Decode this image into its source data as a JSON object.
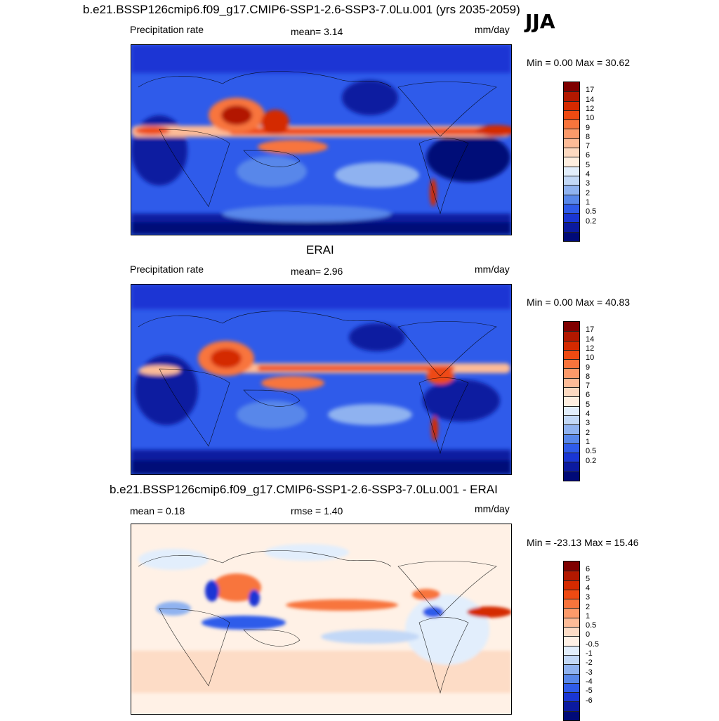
{
  "season": "JJA",
  "panels": [
    {
      "id": "model",
      "title": "b.e21.BSSP126cmip6.f09_g17.CMIP6-SSP1-2.6-SSP3-7.0Lu.001 (yrs 2035-2059)",
      "left_label": "Precipitation rate",
      "center_label": "mean=   3.14",
      "units": "mm/day",
      "minmax": "Min =   0.00 Max =  30.62",
      "stat": {
        "name": "mean",
        "value": 3.14
      },
      "min": 0.0,
      "max": 30.62
    },
    {
      "id": "obs",
      "title": "ERAI",
      "left_label": "Precipitation rate",
      "center_label": "mean=   2.96",
      "units": "mm/day",
      "minmax": "Min =   0.00 Max =  40.83",
      "stat": {
        "name": "mean",
        "value": 2.96
      },
      "min": 0.0,
      "max": 40.83
    },
    {
      "id": "diff",
      "title": "b.e21.BSSP126cmip6.f09_g17.CMIP6-SSP1-2.6-SSP3-7.0Lu.001 - ERAI",
      "left_label": "mean =   0.18",
      "center_label": "rmse =   1.40",
      "units": "mm/day",
      "minmax": "Min = -23.13 Max =  15.46",
      "stats": {
        "mean": 0.18,
        "rmse": 1.4
      },
      "min": -23.13,
      "max": 15.46
    }
  ],
  "colorbars": {
    "precip": {
      "labels": [
        "17",
        "14",
        "12",
        "10",
        "9",
        "8",
        "7",
        "6",
        "5",
        "4",
        "3",
        "2",
        "1",
        "0.5",
        "0.2"
      ],
      "colors": [
        "#7f0000",
        "#b21800",
        "#d42a00",
        "#ee4a12",
        "#f8743c",
        "#fc9a6a",
        "#fdbb97",
        "#fdd9c0",
        "#ffefe0",
        "#e2eefc",
        "#c2d8f7",
        "#8fb2f0",
        "#5887ea",
        "#2f5bea",
        "#1a36d4",
        "#0b1aa0",
        "#000a78"
      ]
    },
    "diff": {
      "labels": [
        "6",
        "5",
        "4",
        "3",
        "2",
        "1",
        "0.5",
        "0",
        "-0.5",
        "-1",
        "-2",
        "-3",
        "-4",
        "-5",
        "-6"
      ],
      "colors": [
        "#7f0000",
        "#b21800",
        "#d42a00",
        "#ee4a12",
        "#f8743c",
        "#fc9a6a",
        "#fdbb97",
        "#fddcc6",
        "#fff1e6",
        "#e2eefc",
        "#c2d8f7",
        "#8fb2f0",
        "#5887ea",
        "#2f5bea",
        "#1a36d4",
        "#0b1aa0",
        "#000a78"
      ]
    }
  },
  "chart_data": [
    {
      "type": "heatmap",
      "title": "b.e21.BSSP126cmip6.f09_g17.CMIP6-SSP1-2.6-SSP3-7.0Lu.001 (yrs 2035-2059)",
      "subtitle": "JJA",
      "variable": "Precipitation rate",
      "units": "mm/day",
      "mean": 3.14,
      "min": 0.0,
      "max": 30.62,
      "contour_levels": [
        0.2,
        0.5,
        1,
        2,
        3,
        4,
        5,
        6,
        7,
        8,
        9,
        10,
        12,
        14,
        17
      ]
    },
    {
      "type": "heatmap",
      "title": "ERAI",
      "variable": "Precipitation rate",
      "units": "mm/day",
      "mean": 2.96,
      "min": 0.0,
      "max": 40.83,
      "contour_levels": [
        0.2,
        0.5,
        1,
        2,
        3,
        4,
        5,
        6,
        7,
        8,
        9,
        10,
        12,
        14,
        17
      ]
    },
    {
      "type": "heatmap",
      "title": "b.e21.BSSP126cmip6.f09_g17.CMIP6-SSP1-2.6-SSP3-7.0Lu.001 - ERAI",
      "units": "mm/day",
      "mean": 0.18,
      "rmse": 1.4,
      "min": -23.13,
      "max": 15.46,
      "contour_levels": [
        -6,
        -5,
        -4,
        -3,
        -2,
        -1,
        -0.5,
        0,
        0.5,
        1,
        2,
        3,
        4,
        5,
        6
      ]
    }
  ]
}
